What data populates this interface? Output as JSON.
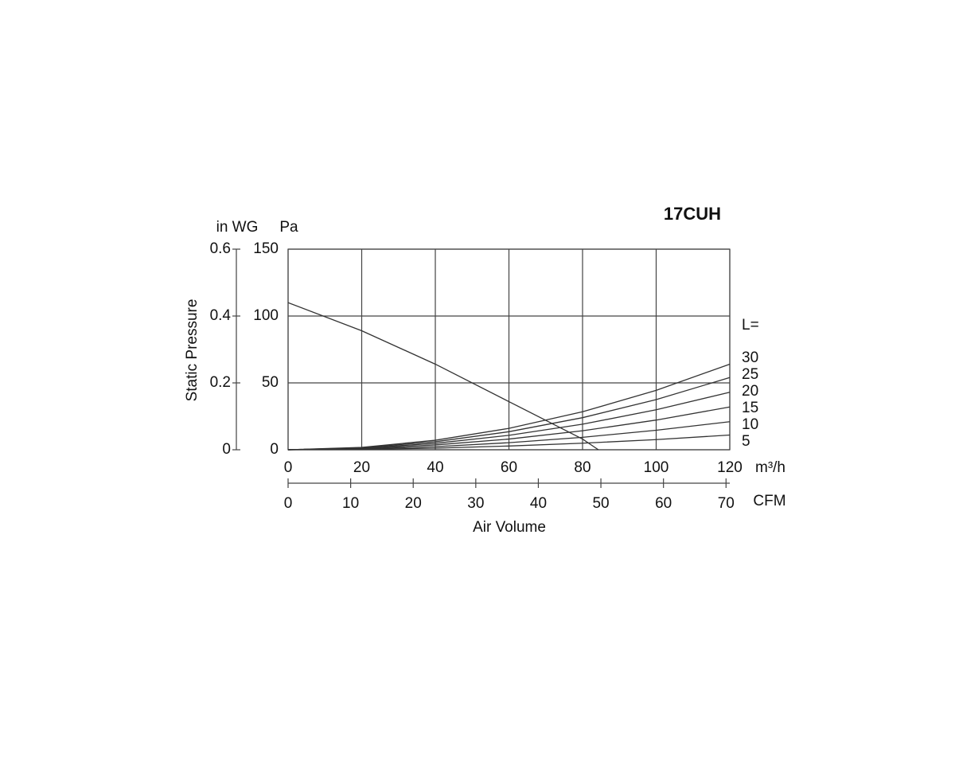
{
  "chart_data": {
    "type": "line",
    "title": "17CUH",
    "y_label": "Static Pressure",
    "y_unit": "Pa",
    "y2_unit": "in WG",
    "x_unit": "m³/h",
    "x2_unit": "CFM",
    "x_label": "Air Volume",
    "legend_title": "L=",
    "xlim": [
      0,
      120
    ],
    "xticks": [
      0,
      20,
      40,
      60,
      80,
      100,
      120
    ],
    "x2lim": [
      0,
      70.6
    ],
    "x2ticks": [
      0,
      10,
      20,
      30,
      40,
      50,
      60,
      70
    ],
    "ylim": [
      0,
      150
    ],
    "yticks": [
      0,
      50,
      100,
      150
    ],
    "y2lim": [
      0,
      0.6
    ],
    "y2ticks": [
      0,
      0.2,
      0.4,
      0.6
    ],
    "grid": true,
    "series": [
      {
        "color": "#333333",
        "x": [
          0,
          20,
          40,
          60,
          80,
          84.3
        ],
        "values": [
          110,
          89,
          64,
          36,
          8,
          0
        ]
      },
      {
        "name": "30",
        "color": "#333333",
        "x": [
          0,
          20,
          40,
          60,
          80,
          100,
          120
        ],
        "values": [
          0,
          1.8,
          7.1,
          16,
          28.4,
          44.4,
          64
        ]
      },
      {
        "name": "25",
        "color": "#333333",
        "x": [
          0,
          20,
          40,
          60,
          80,
          100,
          120
        ],
        "values": [
          0,
          1.5,
          6,
          13.5,
          24,
          37.5,
          54
        ]
      },
      {
        "name": "20",
        "color": "#333333",
        "x": [
          0,
          20,
          40,
          60,
          80,
          100,
          120
        ],
        "values": [
          0,
          1.2,
          4.8,
          10.8,
          19.1,
          29.9,
          43
        ]
      },
      {
        "name": "15",
        "color": "#333333",
        "x": [
          0,
          20,
          40,
          60,
          80,
          100,
          120
        ],
        "values": [
          0,
          0.9,
          3.6,
          8,
          14.2,
          22.2,
          32
        ]
      },
      {
        "name": "10",
        "color": "#333333",
        "x": [
          0,
          20,
          40,
          60,
          80,
          100,
          120
        ],
        "values": [
          0,
          0.6,
          2.3,
          5.3,
          9.3,
          14.6,
          21
        ]
      },
      {
        "name": "5",
        "color": "#333333",
        "x": [
          0,
          20,
          40,
          60,
          80,
          100,
          120
        ],
        "values": [
          0,
          0.3,
          1.2,
          2.8,
          4.9,
          7.6,
          11
        ]
      }
    ]
  }
}
